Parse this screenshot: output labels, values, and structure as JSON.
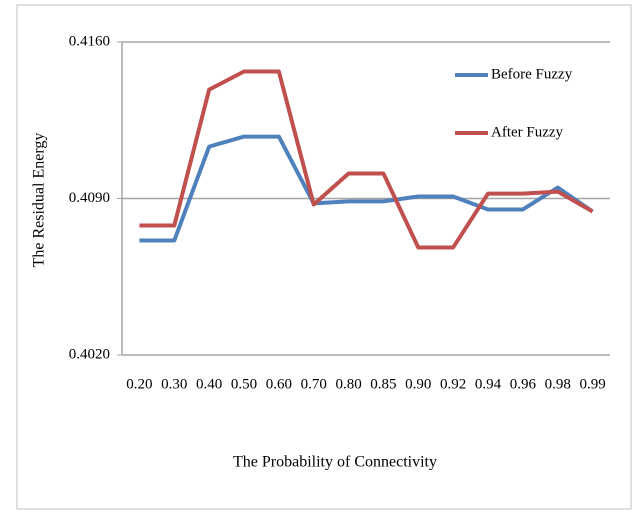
{
  "chart_data": {
    "type": "line",
    "x_label": "The Probability of Connectivity",
    "y_label": "The Residual Energy",
    "categories": [
      "0.20",
      "0.30",
      "0.40",
      "0.50",
      "0.60",
      "0.70",
      "0.80",
      "0.85",
      "0.90",
      "0.92",
      "0.94",
      "0.96",
      "0.98",
      "0.99"
    ],
    "series": [
      {
        "name": "Before Fuzzy",
        "color": "#4f81bd",
        "values": [
          0.40712,
          0.40712,
          0.41132,
          0.41177,
          0.41177,
          0.40878,
          0.40887,
          0.40887,
          0.40909,
          0.40909,
          0.40851,
          0.40851,
          0.40949,
          0.40842
        ]
      },
      {
        "name": "After Fuzzy",
        "color": "#c0504d",
        "values": [
          0.40779,
          0.40779,
          0.41387,
          0.41468,
          0.41468,
          0.40873,
          0.41012,
          0.41012,
          0.40681,
          0.40681,
          0.40922,
          0.40922,
          0.40931,
          0.40842
        ]
      }
    ],
    "ylim": [
      0.402,
      0.416
    ],
    "yticks": [
      {
        "value": 0.402,
        "label": "0.4020"
      },
      {
        "value": 0.409,
        "label": "0.4090"
      },
      {
        "value": 0.416,
        "label": "0.4160"
      }
    ],
    "grid": true,
    "legend": "top-right"
  }
}
